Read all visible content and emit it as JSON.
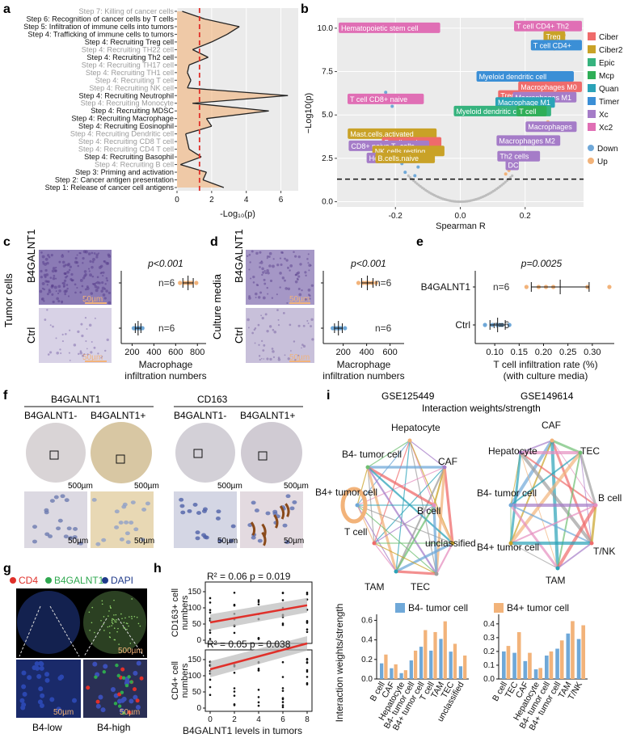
{
  "panels": {
    "a": "a",
    "b": "b",
    "c": "c",
    "d": "d",
    "e": "e",
    "f": "f",
    "g": "g",
    "h": "h",
    "i": "i"
  },
  "colors": {
    "orange": "#f2b37a",
    "blue": "#6fa8d8",
    "red_line": "#e0302a",
    "grid_bg": "#ebebeb",
    "ciber": "#ef6b6b",
    "ciber2": "#c9a227",
    "epic": "#36b37e",
    "mcp": "#2fae57",
    "quan": "#2ba3b8",
    "timer": "#3b8fd6",
    "xc": "#a57cc8",
    "xc2": "#e06fb5",
    "purple_stain": "#6a4a9a",
    "he_bg": "#efe6d8",
    "brown": "#a0662c",
    "dapi": "#1f3a8a",
    "green_if": "#2fa84f",
    "red_if": "#e0302a"
  },
  "chart_data": [
    {
      "panel": "a",
      "type": "line",
      "categories": [
        "Step 7: Killing of cancer cells",
        "Step 6: Recognition of cancer cells by T cells",
        "Step 5: Infiltration of immune cells into tumors",
        "Step 4: Trafficking of immune cells to tumors",
        "Step 4: Recruiting Treg cell",
        "Step 4: Recruiting TH22 cell",
        "Step 4: Recruiting Th2 cell",
        "Step 4: Recruiting TH17 cell",
        "Step 4: Recruiting TH1 cell",
        "Step 4: Recruiting T cell",
        "Step 4: Recruiting NK cell",
        "Step 4: Recruiting Neutrophil",
        "Step 4: Recruiting Monocyte",
        "Step 4: Recruiting MDSC",
        "Step 4: Recruiting Macrophage",
        "Step 4: Recruiting Eosinophil",
        "Step 4: Recruiting Dendritic cell",
        "Step 4: Recruiting CD8 T cell",
        "Step 4: Recruiting CD4 T cell",
        "Step 4: Recruiting Basophil",
        "Step 4: Recruiting B cell",
        "Step 3: Priming and activation",
        "Step 2: Cancer antigen presentation",
        "Step 1: Release of cancer cell antigens"
      ],
      "significant": [
        false,
        true,
        true,
        true,
        true,
        false,
        true,
        false,
        false,
        false,
        false,
        true,
        false,
        true,
        true,
        true,
        false,
        false,
        false,
        true,
        false,
        true,
        true,
        true
      ],
      "values": [
        0.3,
        1.6,
        3.6,
        2.9,
        2.0,
        0.9,
        1.8,
        0.7,
        0.6,
        0.8,
        0.6,
        6.4,
        0.9,
        5.3,
        1.7,
        2.0,
        0.5,
        0.6,
        0.7,
        1.4,
        0.2,
        1.7,
        1.5,
        2.7
      ],
      "xlabel": "-Log₁₀(p)",
      "xlim": [
        0,
        7
      ],
      "xticks": [
        "0",
        "2",
        "4",
        "6"
      ],
      "threshold": 1.3
    },
    {
      "panel": "b",
      "type": "scatter",
      "xlabel": "Spearman R",
      "ylabel": "−Log10(p)",
      "xlim": [
        -0.38,
        0.38
      ],
      "ylim": [
        -0.3,
        10.6
      ],
      "xticks": [
        "-0.2",
        "0.0",
        "0.2"
      ],
      "yticks": [
        "0.0",
        "2.5",
        "5.0",
        "7.5",
        "10.0"
      ],
      "threshold": 1.3,
      "legend_methods": [
        "Ciber",
        "Ciber2",
        "Epic",
        "Mcp",
        "Quan",
        "Timer",
        "Xc",
        "Xc2"
      ],
      "legend_direction": [
        "Down",
        "Up"
      ],
      "labels": [
        {
          "text": "Hematopoietic stem cell",
          "method": "xc2",
          "x": -0.34,
          "y": 10.0
        },
        {
          "text": "T cell CD4+ Th2",
          "method": "xc2",
          "x": 0.31,
          "y": 10.1
        },
        {
          "text": "Treg",
          "method": "ciber2",
          "x": 0.29,
          "y": 9.5
        },
        {
          "text": "T cell CD4+",
          "method": "timer",
          "x": 0.32,
          "y": 9.0
        },
        {
          "text": "Myeloid dendritic cell",
          "method": "timer",
          "x": 0.2,
          "y": 7.2
        },
        {
          "text": "Macrophages M0",
          "method": "ciber",
          "x": 0.28,
          "y": 6.6
        },
        {
          "text": "Treg",
          "method": "ciber",
          "x": 0.15,
          "y": 6.1
        },
        {
          "text": "Macrophages M1",
          "method": "xc",
          "x": 0.26,
          "y": 6.0
        },
        {
          "text": "Macrophage M1",
          "method": "quan",
          "x": 0.2,
          "y": 5.7
        },
        {
          "text": "T cell CD8+ naive",
          "method": "xc2",
          "x": -0.23,
          "y": 5.9
        },
        {
          "text": "Myeloid dendritic cell",
          "method": "epic",
          "x": 0.13,
          "y": 5.2
        },
        {
          "text": "T cell",
          "method": "mcp",
          "x": 0.22,
          "y": 5.2
        },
        {
          "text": "Macrophages",
          "method": "xc",
          "x": 0.28,
          "y": 4.3
        },
        {
          "text": "Mast.cells.activated",
          "method": "ciber2",
          "x": -0.21,
          "y": 3.9
        },
        {
          "text": "B.cells.naive",
          "method": "ciber",
          "x": -0.15,
          "y": 3.4
        },
        {
          "text": "CD8+ naive T−cells",
          "method": "xc",
          "x": -0.22,
          "y": 3.2
        },
        {
          "text": "NK.cells.resting",
          "method": "ciber2",
          "x": -0.16,
          "y": 2.9
        },
        {
          "text": "Hepatocytes",
          "method": "xc",
          "x": -0.21,
          "y": 2.5
        },
        {
          "text": "B.cells.naive",
          "method": "ciber2",
          "x": -0.17,
          "y": 2.5
        },
        {
          "text": "Macrophages M2",
          "method": "xc",
          "x": 0.21,
          "y": 3.5
        },
        {
          "text": "Th2 cells",
          "method": "xc",
          "x": 0.18,
          "y": 2.6
        },
        {
          "text": "DC",
          "method": "xc",
          "x": 0.16,
          "y": 2.1
        }
      ]
    },
    {
      "panel": "c",
      "type": "scatter",
      "xlabel": "Macrophage\ninfiltration numbers",
      "xticks": [
        "200",
        "400",
        "600",
        "800"
      ],
      "p_label": "p<0.001",
      "groups": [
        {
          "name": "B4GALNT1",
          "n": "n=6",
          "values": [
            640,
            680,
            705,
            725,
            745,
            790
          ]
        },
        {
          "name": "Ctrl",
          "n": "n=6",
          "values": [
            215,
            235,
            250,
            260,
            275,
            295
          ]
        }
      ]
    },
    {
      "panel": "d",
      "type": "scatter",
      "xlabel": "Macrophage\ninfiltration numbers",
      "xticks": [
        "200",
        "400",
        "600"
      ],
      "p_label": "p<0.001",
      "groups": [
        {
          "name": "B4GALNT1",
          "n": "n=6",
          "values": [
            330,
            370,
            395,
            415,
            445,
            480
          ]
        },
        {
          "name": "Ctrl",
          "n": "n=6",
          "values": [
            110,
            135,
            150,
            165,
            180,
            215
          ]
        }
      ]
    },
    {
      "panel": "e",
      "type": "scatter",
      "xlabel": "T cell infiltration rate (%)\n(with culture media)",
      "xticks": [
        "0.10",
        "0.15",
        "0.20",
        "0.25",
        "0.30"
      ],
      "p_label": "p=0.0025",
      "groups": [
        {
          "name": "B4GALNT1",
          "n": "n=6",
          "values": [
            0.165,
            0.19,
            0.205,
            0.22,
            0.29,
            0.335
          ]
        },
        {
          "name": "Ctrl",
          "n": "n=6",
          "values": [
            0.08,
            0.095,
            0.105,
            0.11,
            0.115,
            0.13
          ]
        }
      ]
    },
    {
      "panel": "h",
      "type": "scatter",
      "xlabel": "B4GALNT1 levels in tumors",
      "xticks": [
        "0",
        "2",
        "4",
        "6",
        "8"
      ],
      "plots": [
        {
          "ylabel": "CD163+ cell\nnumbers",
          "stat": "R² = 0.06 p = 0.019",
          "yticks": [
            "0",
            "50",
            "100",
            "150"
          ],
          "fit": [
            55,
            108
          ]
        },
        {
          "ylabel": "CD4+ cell\nnumbers",
          "stat": "R² = 0.05 p = 0.038",
          "yticks": [
            "0",
            "50",
            "100",
            "150"
          ],
          "fit": [
            120,
            200
          ]
        }
      ]
    },
    {
      "panel": "i",
      "type": "bar",
      "legend": [
        "B4- tumor cell",
        "B4+ tumor cell"
      ],
      "ylabel": "Interaction weights/strength",
      "sets": [
        {
          "title": "GSE125449",
          "categories": [
            "B cell",
            "CAF",
            "Hepatocyte",
            "B4- tumor cell",
            "B4+ tumor cell",
            "T cell",
            "TAM",
            "TEC",
            "unclassified"
          ],
          "series": [
            {
              "name": "B4- tumor cell",
              "values": [
                0.16,
                0.11,
                0.06,
                0.19,
                0.33,
                0.29,
                0.41,
                0.28,
                0.13
              ]
            },
            {
              "name": "B4+ tumor cell",
              "values": [
                0.25,
                0.15,
                0.09,
                0.29,
                0.5,
                0.48,
                0.59,
                0.36,
                0.24
              ]
            }
          ],
          "yticks": [
            "0.0",
            "0.2",
            "0.4",
            "0.6"
          ],
          "ylim": [
            0,
            0.62
          ]
        },
        {
          "title": "GSE149614",
          "categories": [
            "B cell",
            "TEC",
            "CAF",
            "Hepatocyte",
            "B4- tumor cell",
            "B4+ tumor cell",
            "TAM",
            "T/NK"
          ],
          "series": [
            {
              "name": "B4- tumor cell",
              "values": [
                0.2,
                0.19,
                0.13,
                0.07,
                0.17,
                0.22,
                0.33,
                0.29
              ]
            },
            {
              "name": "B4+ tumor cell",
              "values": [
                0.24,
                0.34,
                0.19,
                0.08,
                0.2,
                0.28,
                0.42,
                0.39
              ]
            }
          ],
          "yticks": [
            "0.0",
            "0.1",
            "0.2",
            "0.3",
            "0.4"
          ],
          "ylim": [
            0,
            0.44
          ]
        }
      ]
    }
  ],
  "text": {
    "c_rowlabel": "Tumor cells",
    "d_rowlabel": "Culture media",
    "img_b4": "B4GALNT1",
    "img_ctrl": "Ctrl",
    "scale50": "50µm",
    "scale500": "500µm",
    "f_b4galnt1": "B4GALNT1",
    "f_cd163": "CD163",
    "f_neg": "B4GALNT1-",
    "f_pos": "B4GALNT1+",
    "g_cd4": "CD4",
    "g_b4": "B4GALNT1",
    "g_dapi": "DAPI",
    "g_low": "B4-low",
    "g_high": "B4-high",
    "i_interaction": "Interaction weights/strength",
    "net1_nodes": [
      "Hepatocyte",
      "CAF",
      "B4- tumor cell",
      "B4+ tumor cell",
      "B cell",
      "unclassified",
      "T cell",
      "TAM",
      "TEC"
    ],
    "net2_nodes": [
      "CAF",
      "Hepatocyte",
      "TEC",
      "B4- tumor cell",
      "B cell",
      "B4+ tumor cell",
      "T/NK",
      "TAM"
    ]
  }
}
